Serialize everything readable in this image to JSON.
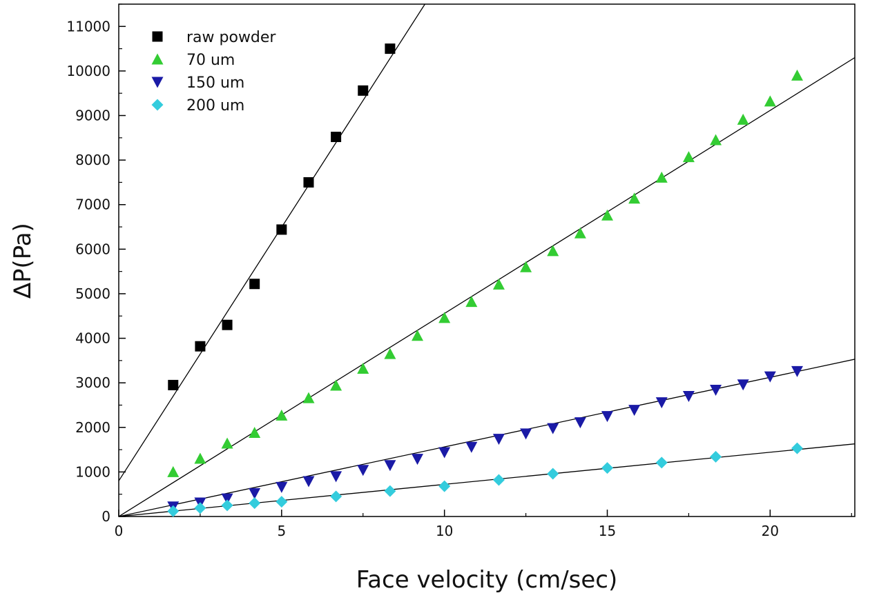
{
  "chart_data": {
    "type": "scatter",
    "title": "",
    "xlabel": "Face velocity (cm/sec)",
    "ylabel": "∆P(Pa)",
    "xlim": [
      0,
      22.6
    ],
    "ylim": [
      0,
      11500
    ],
    "x_ticks": [
      0,
      5,
      10,
      15,
      20
    ],
    "x_tick_labels": [
      "0",
      "5",
      "10",
      "15",
      "20"
    ],
    "y_ticks": [
      0,
      1000,
      2000,
      3000,
      4000,
      5000,
      6000,
      7000,
      8000,
      9000,
      10000,
      11000
    ],
    "y_tick_labels": [
      "0",
      "1000",
      "2000",
      "3000",
      "4000",
      "5000",
      "6000",
      "7000",
      "8000",
      "9000",
      "10000",
      "11000"
    ],
    "grid": false,
    "legend_position": "top-left",
    "series": [
      {
        "name": "raw powder",
        "marker": "square",
        "color": "#000000",
        "x": [
          1.67,
          2.5,
          3.33,
          4.17,
          5.0,
          5.83,
          6.67,
          7.5,
          8.33
        ],
        "y": [
          2950,
          3820,
          4300,
          5220,
          6440,
          7500,
          8520,
          9560,
          10500
        ],
        "fit": {
          "x": [
            0,
            9.4
          ],
          "y": [
            800,
            11500
          ]
        }
      },
      {
        "name": "70 um",
        "marker": "triangle-up",
        "color": "#33cc33",
        "x": [
          1.67,
          2.5,
          3.33,
          4.17,
          5.0,
          5.83,
          6.67,
          7.5,
          8.33,
          9.17,
          10.0,
          10.83,
          11.67,
          12.5,
          13.33,
          14.17,
          15.0,
          15.83,
          16.67,
          17.5,
          18.33,
          19.17,
          20.0,
          20.83
        ],
        "y": [
          1000,
          1300,
          1640,
          1880,
          2270,
          2660,
          2940,
          3320,
          3650,
          4060,
          4460,
          4820,
          5210,
          5600,
          5960,
          6360,
          6760,
          7140,
          7610,
          8070,
          8450,
          8910,
          9320,
          9900
        ],
        "fit": {
          "x": [
            0,
            22.6
          ],
          "y": [
            0,
            10300
          ]
        }
      },
      {
        "name": "150 um",
        "marker": "triangle-down",
        "color": "#1a1aa6",
        "x": [
          1.67,
          2.5,
          3.33,
          4.17,
          5.0,
          5.83,
          6.67,
          7.5,
          8.33,
          9.17,
          10.0,
          10.83,
          11.67,
          12.5,
          13.33,
          14.17,
          15.0,
          15.83,
          16.67,
          17.5,
          18.33,
          19.17,
          20.0,
          20.83
        ],
        "y": [
          220,
          310,
          400,
          520,
          660,
          790,
          900,
          1040,
          1150,
          1290,
          1440,
          1560,
          1740,
          1860,
          1980,
          2110,
          2250,
          2390,
          2560,
          2700,
          2840,
          2960,
          3140,
          3260
        ],
        "fit": {
          "x": [
            0,
            22.6
          ],
          "y": [
            0,
            3530
          ]
        }
      },
      {
        "name": "200 um",
        "marker": "diamond",
        "color": "#33ccdd",
        "x": [
          1.67,
          2.5,
          3.33,
          4.17,
          5.0,
          6.67,
          8.33,
          10.0,
          11.67,
          13.33,
          15.0,
          16.67,
          18.33,
          20.83
        ],
        "y": [
          120,
          190,
          250,
          300,
          330,
          450,
          570,
          680,
          820,
          960,
          1090,
          1210,
          1340,
          1530
        ],
        "fit": {
          "x": [
            0,
            22.6
          ],
          "y": [
            0,
            1630
          ]
        }
      }
    ]
  }
}
